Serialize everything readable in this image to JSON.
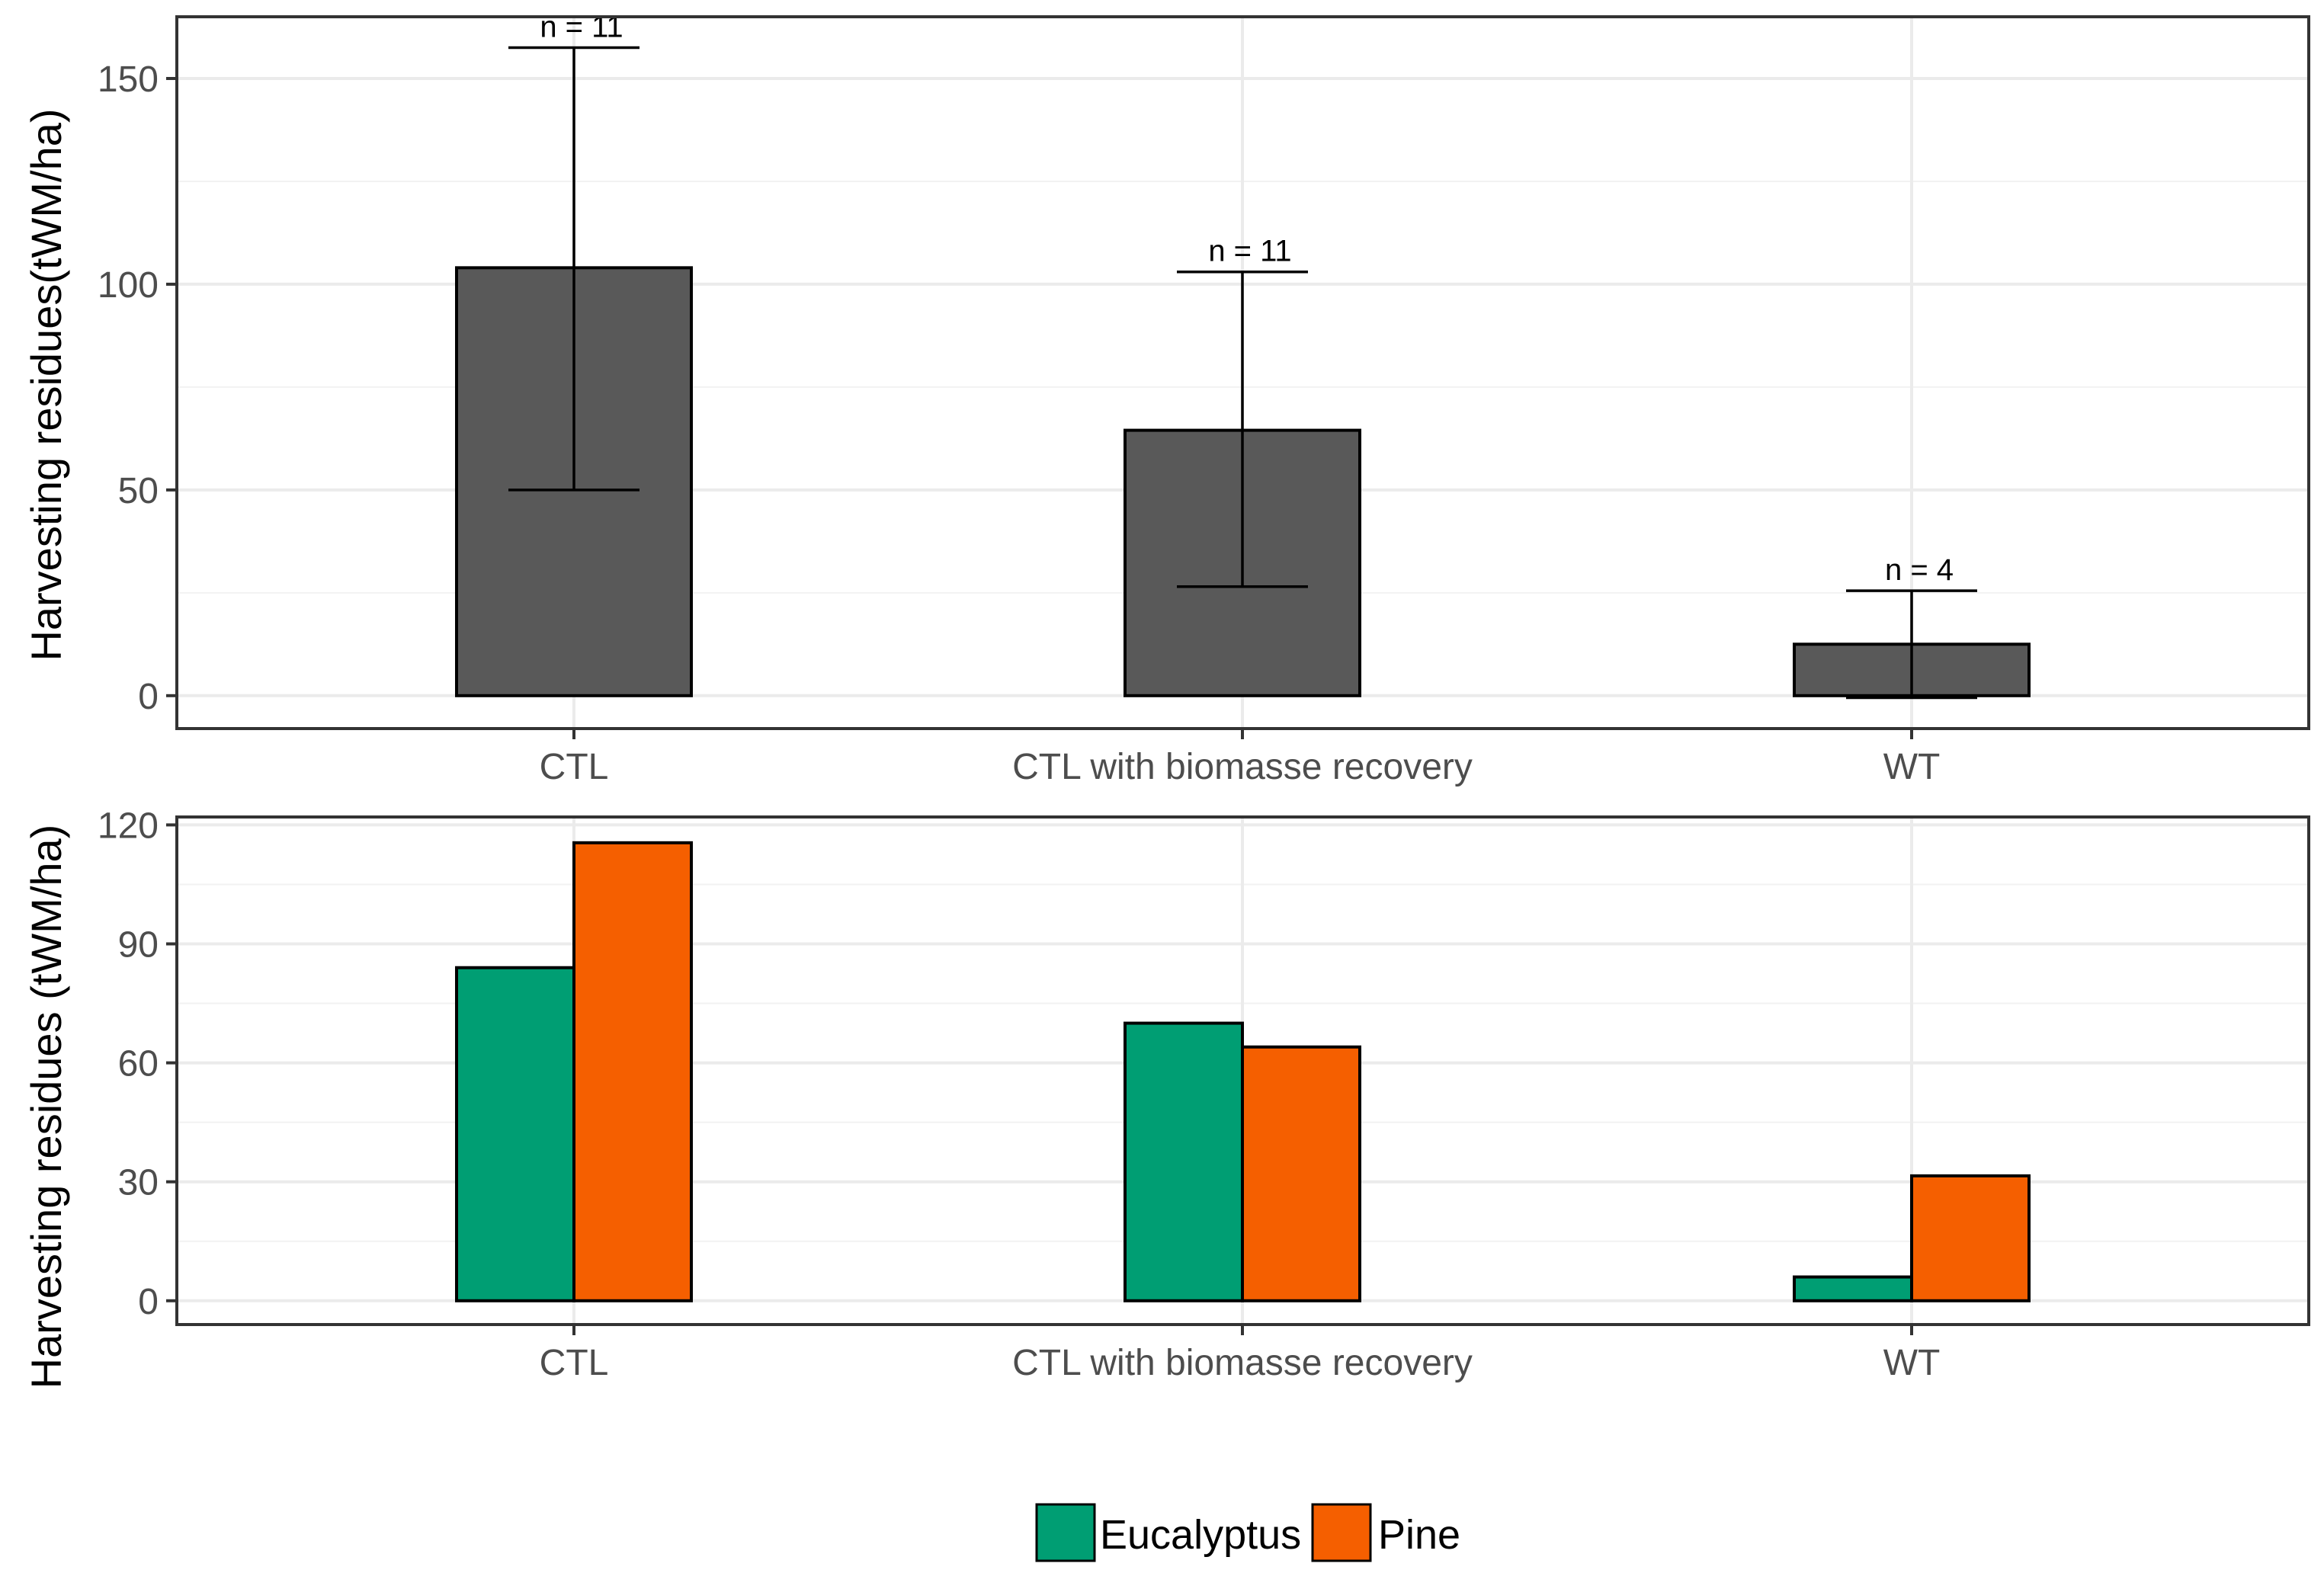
{
  "chart_data": [
    {
      "type": "bar",
      "panel": "top",
      "ylabel": "Harvesting residues(tWM/ha)",
      "categories": [
        "CTL",
        "CTL with biomasse recovery",
        "WT"
      ],
      "values": [
        104,
        64.5,
        12.5
      ],
      "error_lower": [
        50,
        26.5,
        -0.5
      ],
      "error_upper": [
        157.5,
        103,
        25.5
      ],
      "n_labels": [
        "n = 11",
        "n = 11",
        "n = 4"
      ],
      "ylim": [
        -8,
        165
      ],
      "yticks": [
        0,
        50,
        100,
        150
      ],
      "bar_color": "#595959",
      "grid": true
    },
    {
      "type": "bar",
      "panel": "bottom",
      "ylabel": "Harvesting residues (tWM/ha)",
      "categories": [
        "CTL",
        "CTL with biomasse recovery",
        "WT"
      ],
      "series": [
        {
          "name": "Eucalyptus",
          "color": "#009E73",
          "values": [
            84,
            70,
            6
          ]
        },
        {
          "name": "Pine",
          "color": "#F55F00",
          "values": [
            115.5,
            64,
            31.5
          ]
        }
      ],
      "ylim": [
        -6,
        122
      ],
      "yticks": [
        0,
        30,
        60,
        90,
        120
      ],
      "grid": true,
      "legend_position": "bottom"
    }
  ]
}
